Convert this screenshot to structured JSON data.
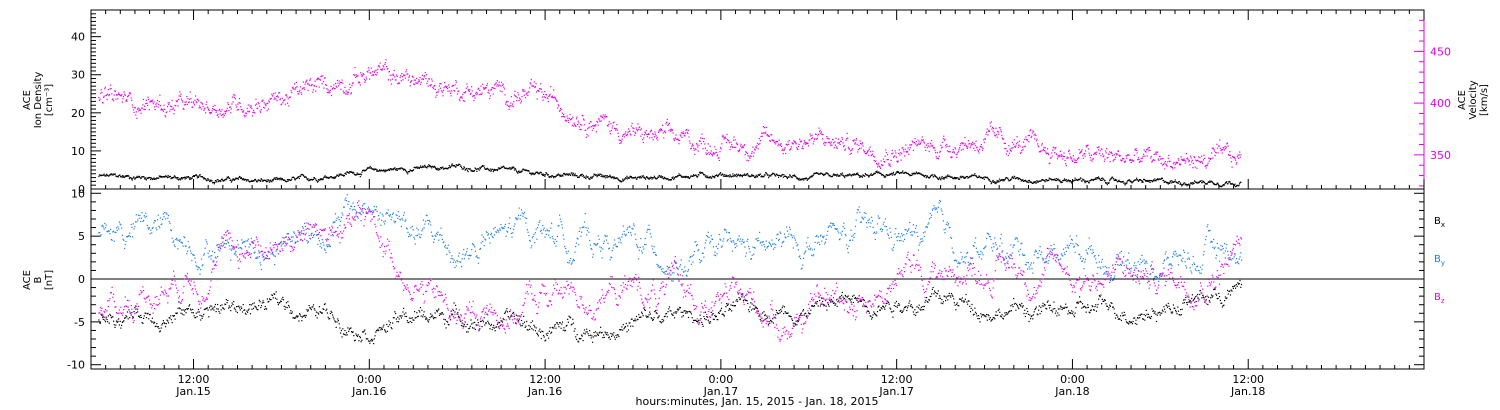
{
  "chart_data": [
    {
      "type": "scatter",
      "panel": "top",
      "ylabel_left": [
        "ACE",
        "Ion Density",
        "[cm⁻³]"
      ],
      "ylabel_right": [
        "ACE",
        "Velocity",
        "[km/s]"
      ],
      "ylim_left": [
        0,
        47
      ],
      "yticks_left": [
        0,
        10,
        20,
        30,
        40
      ],
      "ylim_right": [
        317,
        490
      ],
      "yticks_right": [
        350,
        400,
        450
      ],
      "right_axis_color": "#e800e8",
      "series": [
        {
          "name": "",
          "axis": "left",
          "color": "#000000",
          "x_hours": [
            0,
            6,
            12,
            18,
            24,
            30,
            36,
            42,
            48,
            54,
            60,
            66,
            72,
            78,
            84
          ],
          "values": [
            3,
            3.5,
            3,
            2,
            5,
            6,
            4,
            3,
            4,
            3,
            4,
            3,
            2.5,
            2,
            2
          ]
        },
        {
          "name": "",
          "axis": "right",
          "color": "#e800e8",
          "x_hours": [
            0,
            6,
            12,
            18,
            24,
            30,
            36,
            42,
            48,
            54,
            60,
            66,
            72,
            78,
            84
          ],
          "values": [
            420,
            405,
            395,
            405,
            430,
            415,
            405,
            370,
            360,
            365,
            355,
            365,
            350,
            345,
            345
          ]
        }
      ]
    },
    {
      "type": "scatter",
      "panel": "bottom",
      "ylabel_left": [
        "ACE",
        "B",
        "[nT]"
      ],
      "ylim": [
        -10.5,
        10.5
      ],
      "yticks": [
        -10,
        -5,
        0,
        5,
        10
      ],
      "zero_line": true,
      "legend": [
        "Bₓ",
        "Bᵧ",
        "Bₓ"
      ],
      "legend_entries": [
        {
          "label": "B",
          "sub": "x",
          "color": "#000000"
        },
        {
          "label": "B",
          "sub": "y",
          "color": "#1c7fe0"
        },
        {
          "label": "B",
          "sub": "z",
          "color": "#e800e8"
        }
      ],
      "series": [
        {
          "name": "Bx",
          "color": "#000000",
          "x_hours": [
            0,
            6,
            12,
            18,
            24,
            30,
            36,
            42,
            48,
            54,
            60,
            66,
            72,
            78,
            84
          ],
          "values": [
            -6,
            -4,
            -3.5,
            -3,
            -5,
            -4,
            -6,
            -5,
            -4,
            -3,
            -2,
            -3,
            -4,
            -3,
            -1
          ]
        },
        {
          "name": "By",
          "color": "#1c7fe0",
          "x_hours": [
            0,
            6,
            12,
            18,
            24,
            30,
            36,
            42,
            48,
            54,
            60,
            66,
            72,
            78,
            84
          ],
          "values": [
            3,
            6,
            5,
            5,
            8,
            3,
            6,
            4,
            2,
            4,
            5,
            3,
            4,
            2,
            4
          ]
        },
        {
          "name": "Bz",
          "color": "#e800e8",
          "x_hours": [
            0,
            6,
            12,
            18,
            24,
            30,
            36,
            42,
            48,
            54,
            60,
            66,
            72,
            78,
            84
          ],
          "values": [
            2,
            -4,
            2,
            5,
            6,
            -5,
            -2,
            -1,
            -3,
            -4,
            0,
            2,
            1,
            0,
            4
          ]
        }
      ]
    }
  ],
  "x_axis": {
    "ticks": [
      {
        "time": "12:00",
        "date": "Jan.15"
      },
      {
        "time": "0:00",
        "date": "Jan.16"
      },
      {
        "time": "12:00",
        "date": "Jan.16"
      },
      {
        "time": "0:00",
        "date": "Jan.17"
      },
      {
        "time": "12:00",
        "date": "Jan.17"
      },
      {
        "time": "0:00",
        "date": "Jan.18"
      },
      {
        "time": "12:00",
        "date": "Jan.18"
      }
    ],
    "label": "hours:minutes, Jan. 15, 2015 - Jan. 18, 2015"
  }
}
